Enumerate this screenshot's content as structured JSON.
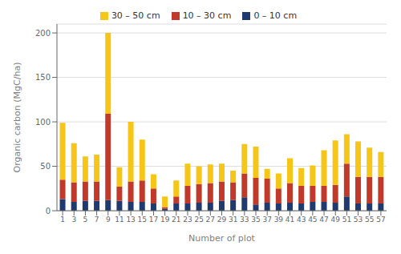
{
  "chart_data": {
    "type": "bar",
    "stacked": true,
    "categories": [
      "1",
      "3",
      "5",
      "7",
      "9",
      "11",
      "13",
      "15",
      "17",
      "19",
      "21",
      "23",
      "25",
      "27",
      "29",
      "31",
      "33",
      "35",
      "37",
      "39",
      "41",
      "43",
      "45",
      "47",
      "49",
      "51",
      "53",
      "55",
      "57"
    ],
    "series": [
      {
        "name": "0 – 10 cm",
        "color": "#1e3a6e",
        "values": [
          13,
          10,
          11,
          11,
          12,
          11,
          10,
          10,
          8,
          2,
          8,
          8,
          9,
          9,
          11,
          12,
          15,
          7,
          9,
          8,
          9,
          8,
          10,
          10,
          9,
          16,
          8,
          8,
          8
        ]
      },
      {
        "name": "10 – 30 cm",
        "color": "#c0392b",
        "values": [
          22,
          22,
          22,
          22,
          97,
          16,
          23,
          24,
          17,
          2,
          8,
          20,
          21,
          22,
          22,
          20,
          27,
          30,
          27,
          17,
          22,
          20,
          18,
          18,
          20,
          37,
          30,
          30,
          30
        ]
      },
      {
        "name": "30 – 50 cm",
        "color": "#f5c518",
        "values": [
          64,
          44,
          28,
          30,
          91,
          22,
          67,
          46,
          16,
          12,
          18,
          25,
          20,
          21,
          20,
          13,
          33,
          35,
          11,
          17,
          28,
          20,
          23,
          40,
          50,
          33,
          40,
          33,
          28
        ]
      }
    ],
    "xlabel": "Number of plot",
    "ylabel": "Organic carbon (MgC/ha)",
    "ylim": [
      0,
      210
    ],
    "yticks": [
      0,
      50,
      100,
      150,
      200
    ],
    "grid": true,
    "legend": "top"
  }
}
